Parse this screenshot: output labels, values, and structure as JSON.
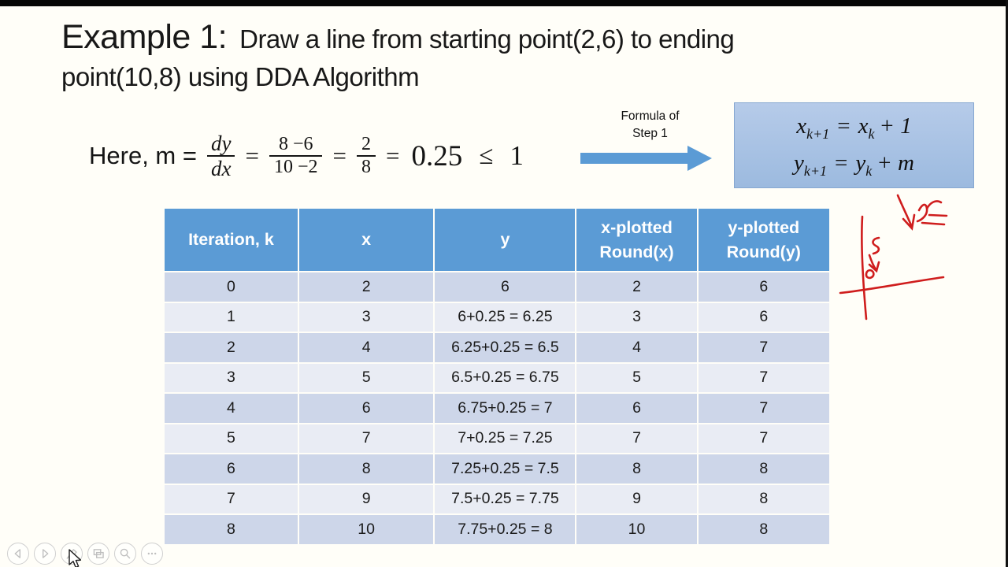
{
  "title": {
    "prefix": "Example 1:",
    "line1_rest": "Draw a line from starting point(2,6) to ending",
    "line2": "point(10,8) using DDA Algorithm"
  },
  "equation": {
    "prefix": "Here, m =",
    "f1_num": "dy",
    "f1_den": "dx",
    "eq1": "=",
    "f2_num": "8 −6",
    "f2_den": "10 −2",
    "eq2": "=",
    "f3_num": "2",
    "f3_den": "8",
    "eq3": "=",
    "result": "0.25",
    "relation": "≤",
    "bound": "1"
  },
  "step_callout": {
    "label_line1": "Formula of",
    "label_line2": "Step 1"
  },
  "formula_box": {
    "line1": {
      "lhs": "x",
      "lhs_sub": "k+1",
      "eq": "=",
      "rhs": "x",
      "rhs_sub": "k",
      "tail": "+ 1"
    },
    "line2": {
      "lhs": "y",
      "lhs_sub": "k+1",
      "eq": "=",
      "rhs": "y",
      "rhs_sub": "k",
      "tail": "+ m"
    }
  },
  "table": {
    "headers": [
      "Iteration, k",
      "x",
      "y",
      "x-plotted\nRound(x)",
      "y-plotted\nRound(y)"
    ],
    "rows": [
      [
        "0",
        "2",
        "6",
        "2",
        "6"
      ],
      [
        "1",
        "3",
        "6+0.25 = 6.25",
        "3",
        "6"
      ],
      [
        "2",
        "4",
        "6.25+0.25 = 6.5",
        "4",
        "7"
      ],
      [
        "3",
        "5",
        "6.5+0.25 = 6.75",
        "5",
        "7"
      ],
      [
        "4",
        "6",
        "6.75+0.25 = 7",
        "6",
        "7"
      ],
      [
        "5",
        "7",
        "7+0.25 = 7.25",
        "7",
        "7"
      ],
      [
        "6",
        "8",
        "7.25+0.25 = 7.5",
        "8",
        "8"
      ],
      [
        "7",
        "9",
        "7.5+0.25 = 7.75",
        "9",
        "8"
      ],
      [
        "8",
        "10",
        "7.75+0.25 = 8",
        "10",
        "8"
      ]
    ]
  },
  "annotations": {
    "red_ink_marks": [
      "down-right-arrow",
      "r-equals-scribble",
      "s-letter",
      "small-down-arrow-with-dot",
      "hand-drawn-axes"
    ]
  },
  "toolbar": {
    "buttons": [
      {
        "name": "previous-slide",
        "icon": "left-triangle-icon"
      },
      {
        "name": "next-slide",
        "icon": "right-triangle-icon"
      },
      {
        "name": "pen-tools",
        "icon": "pen-icon"
      },
      {
        "name": "see-all-slides",
        "icon": "slides-icon"
      },
      {
        "name": "zoom",
        "icon": "magnifier-icon"
      },
      {
        "name": "more-options",
        "icon": "ellipsis-icon"
      }
    ]
  },
  "colors": {
    "slide_bg": "#FFFEF8",
    "header_blue": "#5B9BD5",
    "band_dark": "#CDD6E9",
    "band_light": "#E9ECF4",
    "box_fill_top": "#B6CBE9",
    "box_fill_bottom": "#9CBADF",
    "box_border": "#86A7D1",
    "arrow_blue": "#5B9BD5",
    "ink_red": "#CF1D1D"
  }
}
